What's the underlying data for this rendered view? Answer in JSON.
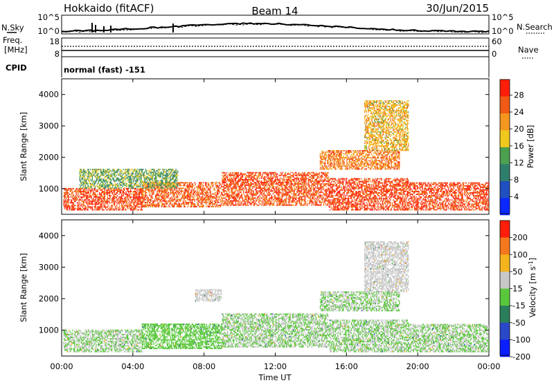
{
  "header": {
    "radar": "Hokkaido (fitACF)",
    "beam": "Beam 14",
    "date": "30/Jun/2015"
  },
  "noise_panel": {
    "left_label": "N.Sky",
    "right_label": "N.Search",
    "left_ticks": [
      "10^5",
      "10^0"
    ],
    "right_ticks": [
      "10^5",
      "10^0"
    ]
  },
  "freq_panel": {
    "left_label_1": "Freq.",
    "left_label_2": "[MHz]",
    "left_ticks": [
      "18",
      "8"
    ],
    "right_label": "Nave",
    "right_ticks": [
      "60",
      "0"
    ]
  },
  "cpid_panel": {
    "left_label": "CPID",
    "text": "normal (fast) -151"
  },
  "chart_data": [
    {
      "type": "heatmap",
      "title": "",
      "xlabel": "Time UT",
      "ylabel": "Slant Range [km]",
      "x_ticks": [
        "00:00",
        "04:00",
        "08:00",
        "12:00",
        "16:00",
        "20:00",
        "00:00"
      ],
      "y_ticks": [
        "1000",
        "2000",
        "3000",
        "4000"
      ],
      "xlim": [
        0,
        24
      ],
      "ylim": [
        180,
        4500
      ],
      "colorbar": {
        "label": "Power [dB]",
        "ticks": [
          "4",
          "8",
          "12",
          "16",
          "20",
          "24",
          "28"
        ],
        "range": [
          0,
          32
        ],
        "colors": [
          "#0a28ff",
          "#2050c0",
          "#2f7e6c",
          "#4ca050",
          "#f0c81e",
          "#f5961e",
          "#f05a14",
          "#ff1e0a"
        ]
      },
      "echo_regions": [
        {
          "t": [
            0.1,
            4.5
          ],
          "r": [
            300,
            1000
          ],
          "value": 28
        },
        {
          "t": [
            4.5,
            9.0
          ],
          "r": [
            400,
            1200
          ],
          "value": 26
        },
        {
          "t": [
            9.0,
            15.0
          ],
          "r": [
            450,
            1500
          ],
          "value": 27
        },
        {
          "t": [
            15.0,
            19.5
          ],
          "r": [
            300,
            1300
          ],
          "value": 28
        },
        {
          "t": [
            19.5,
            24.0
          ],
          "r": [
            300,
            1200
          ],
          "value": 28
        },
        {
          "t": [
            1.0,
            6.5
          ],
          "r": [
            1000,
            1600
          ],
          "value": 14
        },
        {
          "t": [
            14.5,
            19.0
          ],
          "r": [
            1600,
            2200
          ],
          "value": 24
        },
        {
          "t": [
            17.0,
            19.5
          ],
          "r": [
            2200,
            3800
          ],
          "value": 20
        }
      ]
    },
    {
      "type": "heatmap",
      "title": "",
      "xlabel": "Time UT",
      "ylabel": "Slant Range [km]",
      "x_ticks": [
        "00:00",
        "04:00",
        "08:00",
        "12:00",
        "16:00",
        "20:00",
        "00:00"
      ],
      "y_ticks": [
        "1000",
        "2000",
        "3000",
        "4000"
      ],
      "xlim": [
        0,
        24
      ],
      "ylim": [
        180,
        4500
      ],
      "colorbar": {
        "label": "Velocity [m s^-1]",
        "ticks": [
          "200",
          "100",
          "50",
          "15",
          "-15",
          "-50",
          "-100",
          "-200"
        ],
        "range": [
          -250,
          250
        ],
        "colors": [
          "#0a1eff",
          "#2a48c8",
          "#2a7f5a",
          "#5ac83c",
          "#c8c8c8",
          "#f5b41e",
          "#f5781e",
          "#ff1e0a"
        ]
      },
      "echo_regions": [
        {
          "t": [
            0.1,
            4.5
          ],
          "r": [
            300,
            1000
          ],
          "value": 0
        },
        {
          "t": [
            4.5,
            9.0
          ],
          "r": [
            400,
            1200
          ],
          "value": -20
        },
        {
          "t": [
            9.0,
            15.0
          ],
          "r": [
            450,
            1500
          ],
          "value": 0
        },
        {
          "t": [
            15.0,
            19.5
          ],
          "r": [
            300,
            1300
          ],
          "value": 0
        },
        {
          "t": [
            19.5,
            24.0
          ],
          "r": [
            300,
            1200
          ],
          "value": 0
        },
        {
          "t": [
            14.5,
            19.0
          ],
          "r": [
            1600,
            2200
          ],
          "value": 0
        },
        {
          "t": [
            7.5,
            9.0
          ],
          "r": [
            1900,
            2300
          ],
          "value": 40
        },
        {
          "t": [
            17.0,
            19.5
          ],
          "r": [
            2200,
            3800
          ],
          "value": 40
        }
      ]
    }
  ],
  "colors": {
    "background": "#ffffff",
    "axes": "#000000"
  }
}
